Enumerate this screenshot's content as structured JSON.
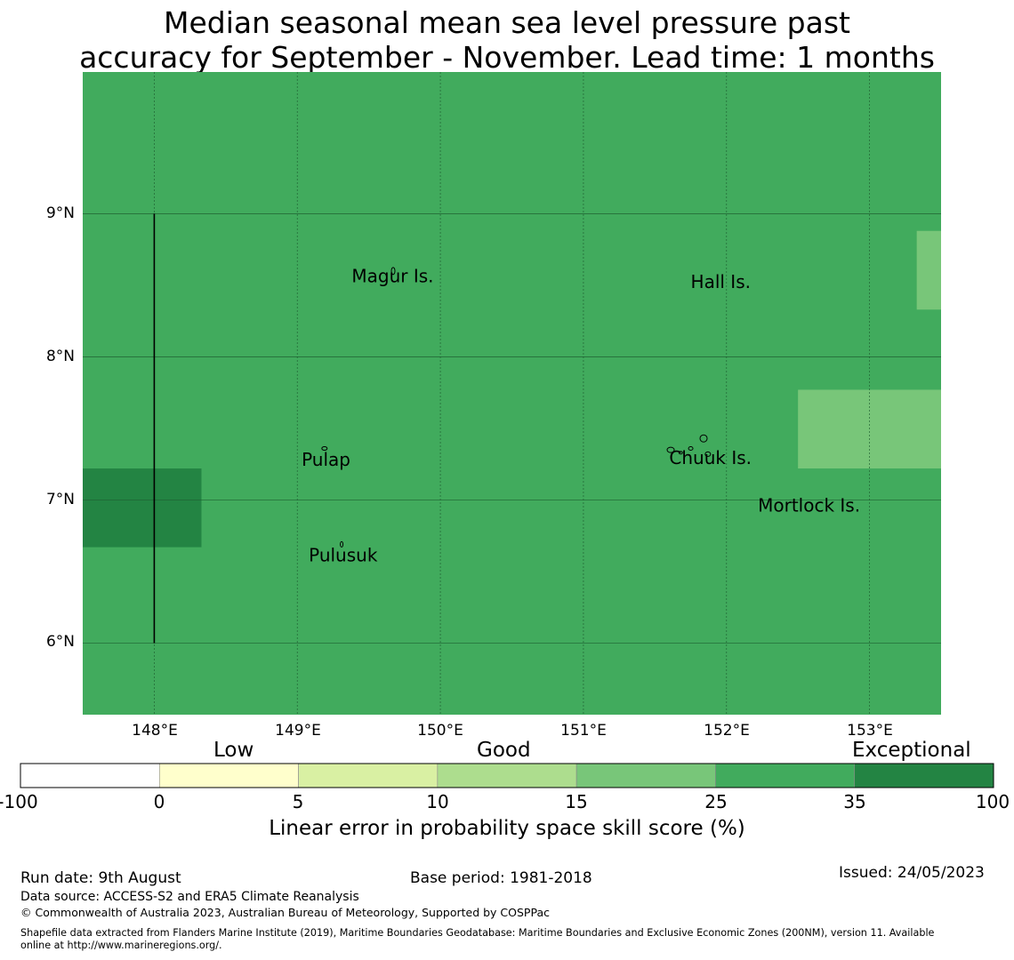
{
  "title_lines": [
    "Median seasonal mean sea level pressure past",
    "accuracy for September - November. Lead time: 1 months"
  ],
  "map": {
    "lon_range": [
      147.5,
      153.5
    ],
    "lat_range": [
      5.5,
      9.99
    ],
    "lon_ticks": [
      {
        "value": 148,
        "label": "148°E"
      },
      {
        "value": 149,
        "label": "149°E"
      },
      {
        "value": 150,
        "label": "150°E"
      },
      {
        "value": 151,
        "label": "151°E"
      },
      {
        "value": 152,
        "label": "152°E"
      },
      {
        "value": 153,
        "label": "153°E"
      }
    ],
    "lat_ticks": [
      {
        "value": 9,
        "label": "9°N"
      },
      {
        "value": 8,
        "label": "8°N"
      },
      {
        "value": 7,
        "label": "7°N"
      },
      {
        "value": 6,
        "label": "6°N"
      }
    ],
    "background_class": "25-35",
    "cells": [
      {
        "lon": [
          147.5,
          148.33
        ],
        "lat": [
          6.67,
          7.22
        ],
        "class": "35-100"
      },
      {
        "lon": [
          152.5,
          153.5
        ],
        "lat": [
          7.22,
          7.77
        ],
        "class": "15-25"
      },
      {
        "lon": [
          153.33,
          153.5
        ],
        "lat": [
          8.33,
          8.88
        ],
        "class": "15-25"
      }
    ],
    "boundary_line": {
      "lon": 148.0,
      "lat": [
        6.0,
        9.0
      ]
    },
    "places": [
      {
        "name": "Magur Is.",
        "lon": 149.38,
        "lat": 8.52
      },
      {
        "name": "Hall Is.",
        "lon": 151.75,
        "lat": 8.48
      },
      {
        "name": "Pulap",
        "lon": 149.03,
        "lat": 7.24
      },
      {
        "name": "Chuuk Is.",
        "lon": 151.6,
        "lat": 7.25
      },
      {
        "name": "Mortlock Is.",
        "lon": 152.22,
        "lat": 6.92
      },
      {
        "name": "Pulusuk",
        "lon": 149.08,
        "lat": 6.57
      }
    ]
  },
  "legend": {
    "categories": [
      "Low",
      "Good",
      "Exceptional"
    ],
    "bins": [
      {
        "id": "-100-0",
        "color": "#ffffff"
      },
      {
        "id": "0-5",
        "color": "#ffffcc"
      },
      {
        "id": "5-10",
        "color": "#d9f0a3"
      },
      {
        "id": "10-15",
        "color": "#addd8e"
      },
      {
        "id": "15-25",
        "color": "#78c679"
      },
      {
        "id": "25-35",
        "color": "#41ab5d"
      },
      {
        "id": "35-100",
        "color": "#238443"
      }
    ],
    "ticks": [
      "-100",
      "0",
      "5",
      "10",
      "15",
      "25",
      "35",
      "100"
    ],
    "label": "Linear error in probability space skill score (%)"
  },
  "footer": {
    "run_date": "Run date: 9th August",
    "base_period": "Base period: 1981-2018",
    "issued": "Issued: 24/05/2023",
    "data_source": "Data source: ACCESS-S2 and ERA5 Climate Reanalysis",
    "copyright": "© Commonwealth of Australia 2023, Australian Bureau of Meteorology, Supported by COSPPac",
    "shapefile_line1": "Shapefile data extracted from Flanders Marine Institute (2019), Maritime Boundaries Geodatabase: Maritime Boundaries and Exclusive Economic Zones (200NM), version 11. Available",
    "shapefile_line2": "online at http://www.marineregions.org/."
  }
}
